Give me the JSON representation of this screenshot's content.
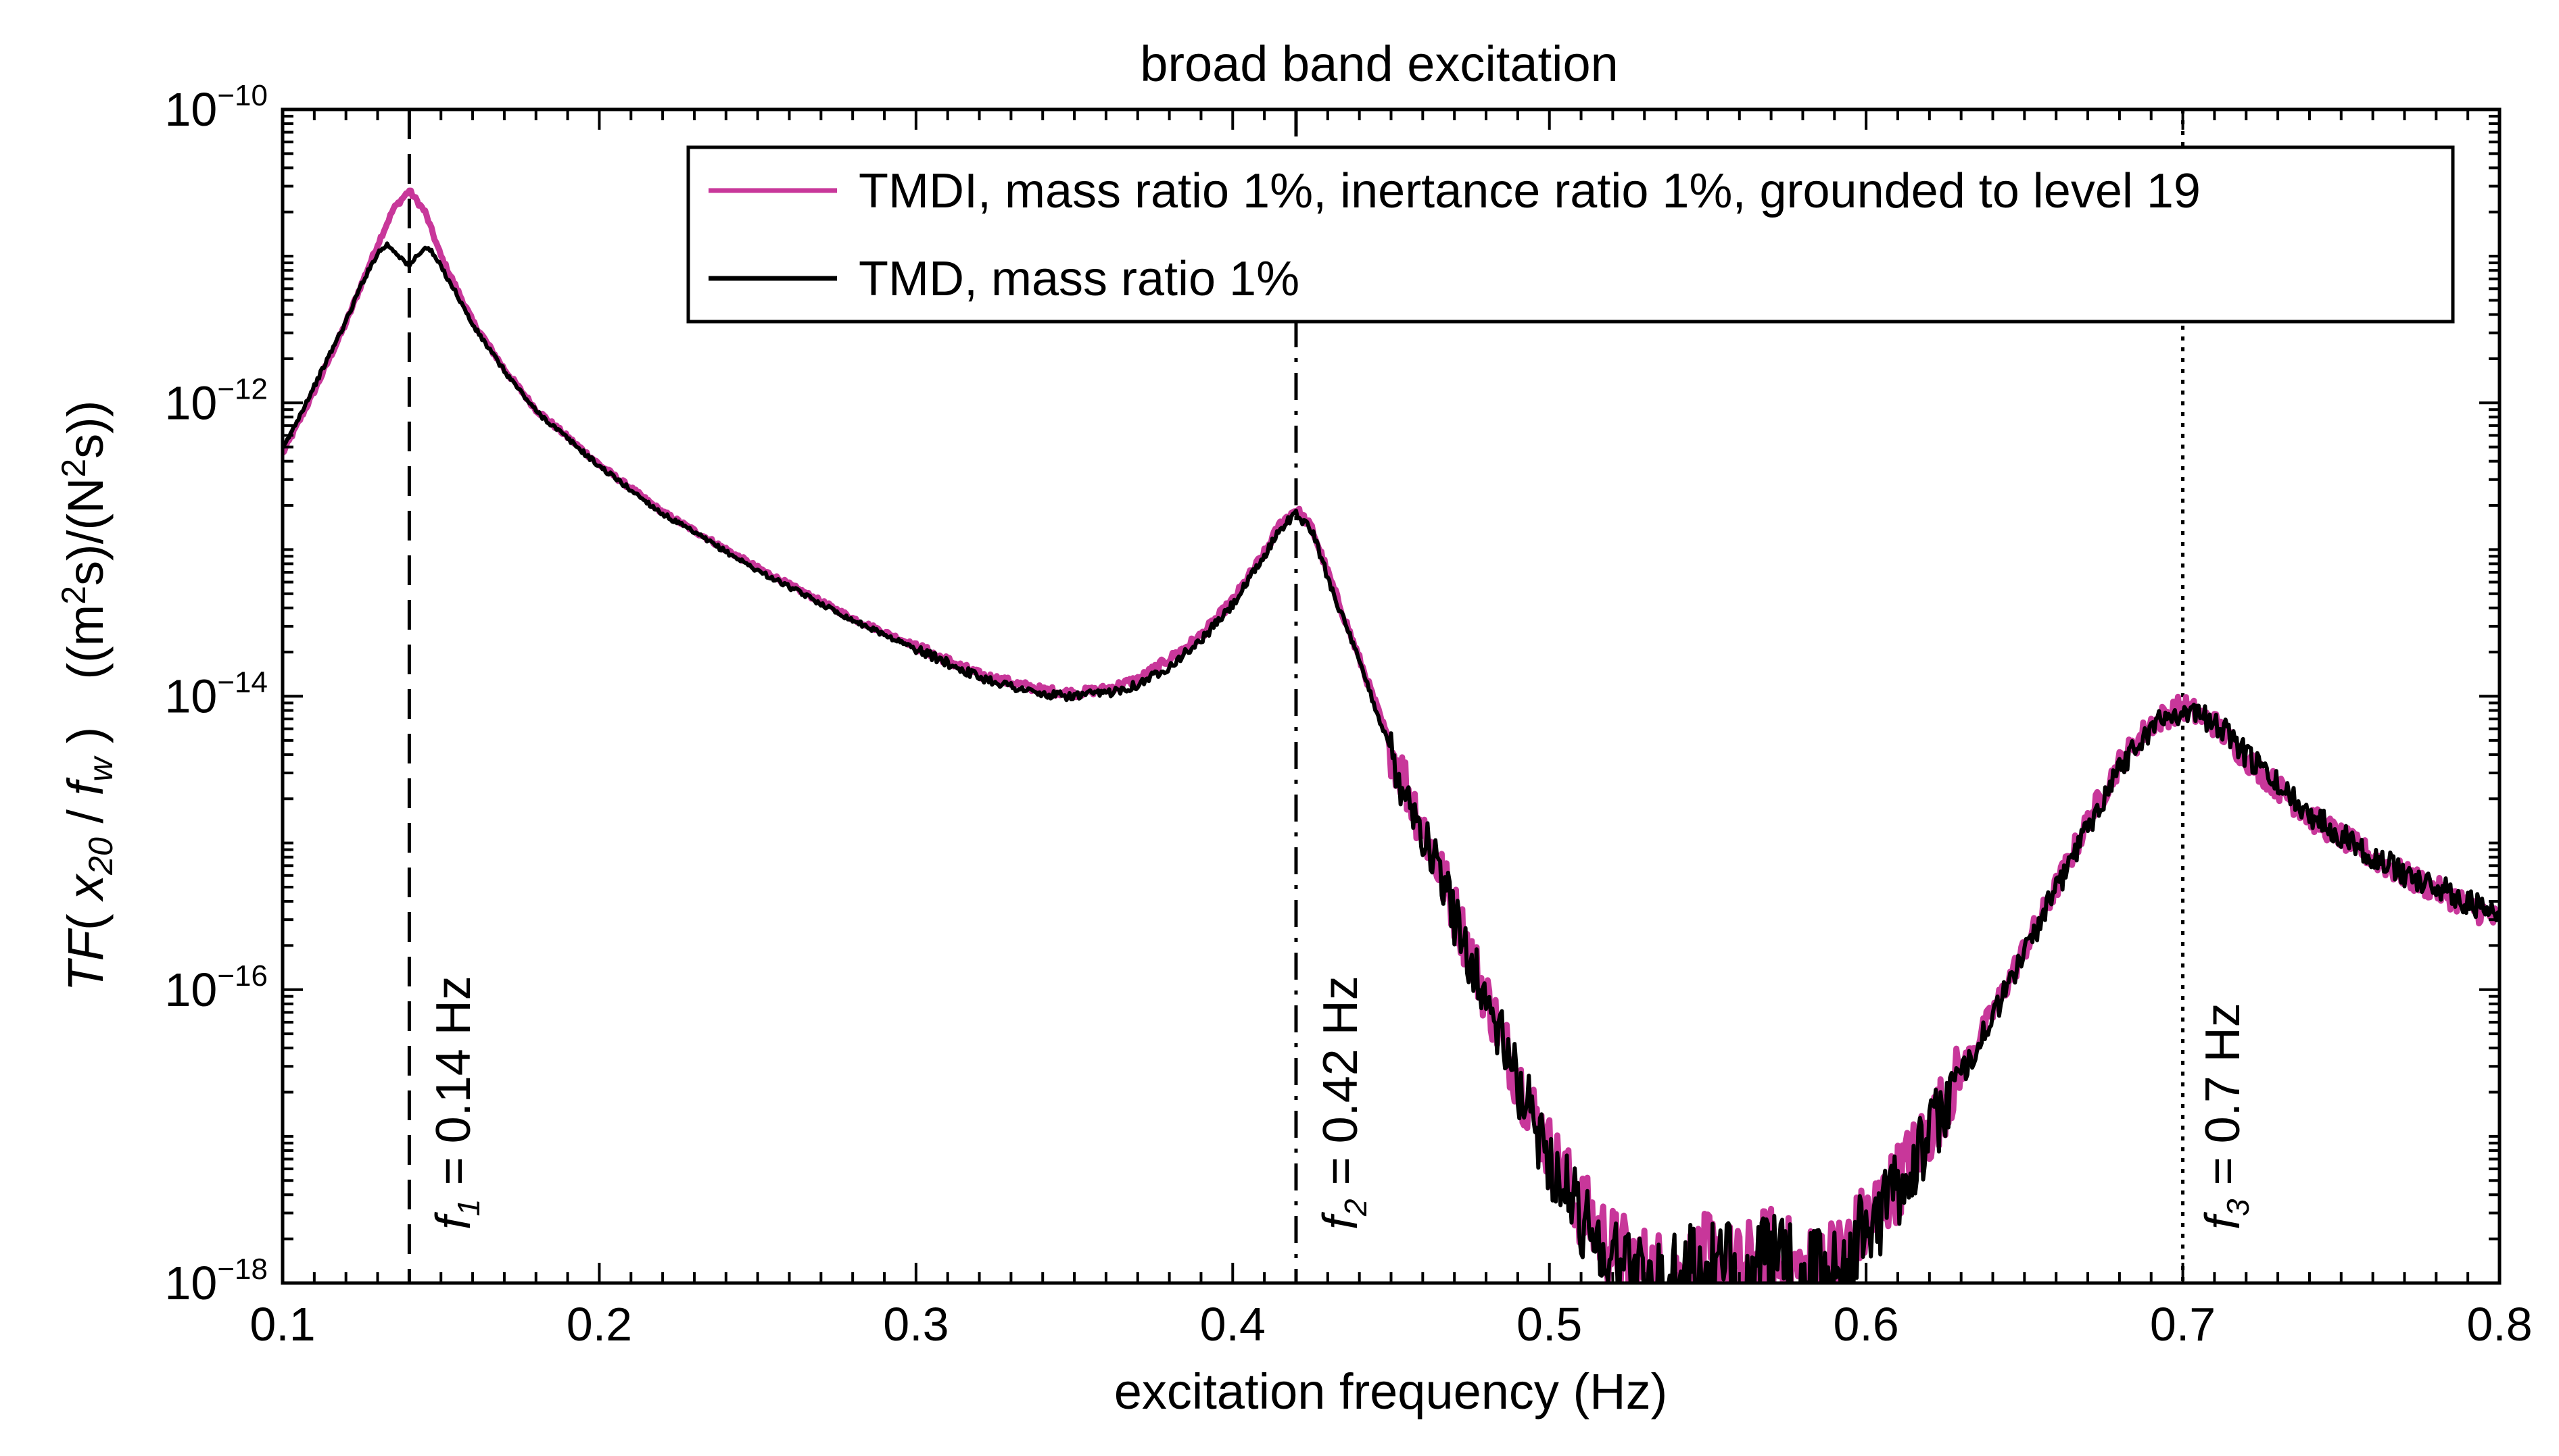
{
  "chart_data": {
    "type": "line",
    "title": "broad band excitation",
    "xlabel": "excitation frequency (Hz)",
    "ylabel": {
      "prefix": "TF",
      "open": "( ",
      "num_var": "x",
      "num_sub": "20",
      "slash": " / ",
      "den_var": "f",
      "den_sub": "w",
      "close": " )",
      "unit_open": "((m",
      "unit_sup1": "2",
      "unit_mid": "s)/(N",
      "unit_sup2": "2",
      "unit_close": "s))"
    },
    "xlim": [
      0.1,
      0.8
    ],
    "ylim": [
      1e-18,
      1e-10
    ],
    "yscale": "log",
    "grid": false,
    "legend_position": "top-right",
    "x_ticks": [
      "0.1",
      "0.2",
      "0.3",
      "0.4",
      "0.5",
      "0.6",
      "0.7",
      "0.8"
    ],
    "y_ticks": [
      {
        "base": "10",
        "exp": "−10",
        "value": 1e-10
      },
      {
        "base": "10",
        "exp": "−12",
        "value": 1e-12
      },
      {
        "base": "10",
        "exp": "−14",
        "value": 1e-14
      },
      {
        "base": "10",
        "exp": "−16",
        "value": 1e-16
      },
      {
        "base": "10",
        "exp": "−18",
        "value": 1e-18
      }
    ],
    "series": [
      {
        "name": "TMDI, mass ratio 1%, inertance ratio 1%, grounded to level 19",
        "color": "#c8379a",
        "points": [
          [
            0.1,
            4.5e-13
          ],
          [
            0.11,
            1.2e-12
          ],
          [
            0.12,
            3.5e-12
          ],
          [
            0.125,
            6.5e-12
          ],
          [
            0.13,
            1.2e-11
          ],
          [
            0.135,
            2.1e-11
          ],
          [
            0.14,
            2.8e-11
          ],
          [
            0.145,
            2e-11
          ],
          [
            0.15,
            1e-11
          ],
          [
            0.155,
            6e-12
          ],
          [
            0.16,
            3.6e-12
          ],
          [
            0.17,
            1.7e-12
          ],
          [
            0.18,
            9e-13
          ],
          [
            0.2,
            3.8e-13
          ],
          [
            0.22,
            1.8e-13
          ],
          [
            0.25,
            7.5e-14
          ],
          [
            0.28,
            3.4e-14
          ],
          [
            0.3,
            2.2e-14
          ],
          [
            0.32,
            1.4e-14
          ],
          [
            0.34,
            1.1e-14
          ],
          [
            0.35,
            1.05e-14
          ],
          [
            0.36,
            1.12e-14
          ],
          [
            0.37,
            1.3e-14
          ],
          [
            0.38,
            1.8e-14
          ],
          [
            0.39,
            2.6e-14
          ],
          [
            0.4,
            4.5e-14
          ],
          [
            0.41,
            9.5e-14
          ],
          [
            0.415,
            1.5e-13
          ],
          [
            0.42,
            1.9e-13
          ],
          [
            0.425,
            1.4e-13
          ],
          [
            0.43,
            7e-14
          ],
          [
            0.44,
            1.8e-14
          ],
          [
            0.45,
            4.5e-15
          ],
          [
            0.46,
            1.3e-15
          ],
          [
            0.47,
            3.5e-16
          ],
          [
            0.48,
            9e-17
          ],
          [
            0.49,
            2.5e-17
          ],
          [
            0.5,
            8e-18
          ],
          [
            0.51,
            3.2e-18
          ],
          [
            0.52,
            1.7e-18
          ],
          [
            0.53,
            1.2e-18
          ],
          [
            0.54,
            1e-18
          ],
          [
            0.55,
            1.3e-18
          ],
          [
            0.56,
            1e-18
          ],
          [
            0.57,
            1.5e-18
          ],
          [
            0.58,
            1.1e-18
          ],
          [
            0.59,
            1.4e-18
          ],
          [
            0.6,
            2.5e-18
          ],
          [
            0.61,
            5e-18
          ],
          [
            0.62,
            1.1e-17
          ],
          [
            0.63,
            2.8e-17
          ],
          [
            0.64,
            7e-17
          ],
          [
            0.65,
            1.9e-16
          ],
          [
            0.66,
            5e-16
          ],
          [
            0.67,
            1.4e-15
          ],
          [
            0.68,
            3.5e-15
          ],
          [
            0.69,
            6.5e-15
          ],
          [
            0.7,
            8.5e-15
          ],
          [
            0.71,
            6.5e-15
          ],
          [
            0.72,
            3.8e-15
          ],
          [
            0.73,
            2.4e-15
          ],
          [
            0.74,
            1.5e-15
          ],
          [
            0.75,
            1.1e-15
          ],
          [
            0.76,
            8e-16
          ],
          [
            0.77,
            6e-16
          ],
          [
            0.78,
            4.8e-16
          ],
          [
            0.79,
            3.8e-16
          ],
          [
            0.8,
            2.9e-16
          ]
        ]
      },
      {
        "name": "TMD, mass ratio 1%",
        "color": "#000000",
        "points": [
          [
            0.1,
            4.8e-13
          ],
          [
            0.11,
            1.3e-12
          ],
          [
            0.12,
            3.6e-12
          ],
          [
            0.125,
            6.5e-12
          ],
          [
            0.13,
            1.05e-11
          ],
          [
            0.133,
            1.2e-11
          ],
          [
            0.136,
            1.05e-11
          ],
          [
            0.14,
            8.5e-12
          ],
          [
            0.143,
            1.05e-11
          ],
          [
            0.146,
            1.15e-11
          ],
          [
            0.15,
            8.5e-12
          ],
          [
            0.155,
            5.5e-12
          ],
          [
            0.16,
            3.4e-12
          ],
          [
            0.17,
            1.65e-12
          ],
          [
            0.18,
            8.8e-13
          ],
          [
            0.2,
            3.7e-13
          ],
          [
            0.22,
            1.75e-13
          ],
          [
            0.25,
            7.2e-14
          ],
          [
            0.28,
            3.3e-14
          ],
          [
            0.3,
            2.1e-14
          ],
          [
            0.32,
            1.35e-14
          ],
          [
            0.34,
            1.02e-14
          ],
          [
            0.35,
            1e-14
          ],
          [
            0.36,
            1.05e-14
          ],
          [
            0.37,
            1.2e-14
          ],
          [
            0.38,
            1.6e-14
          ],
          [
            0.39,
            2.4e-14
          ],
          [
            0.4,
            4.2e-14
          ],
          [
            0.41,
            9e-14
          ],
          [
            0.415,
            1.4e-13
          ],
          [
            0.42,
            1.75e-13
          ],
          [
            0.425,
            1.35e-13
          ],
          [
            0.43,
            6.5e-14
          ],
          [
            0.44,
            1.7e-14
          ],
          [
            0.45,
            4.2e-15
          ],
          [
            0.46,
            1.2e-15
          ],
          [
            0.47,
            3.2e-16
          ],
          [
            0.48,
            8.5e-17
          ],
          [
            0.49,
            2.3e-17
          ],
          [
            0.5,
            7e-18
          ],
          [
            0.51,
            2.8e-18
          ],
          [
            0.52,
            1.5e-18
          ],
          [
            0.53,
            1.1e-18
          ],
          [
            0.54,
            1e-18
          ],
          [
            0.55,
            1.2e-18
          ],
          [
            0.56,
            1e-18
          ],
          [
            0.57,
            1.3e-18
          ],
          [
            0.58,
            1e-18
          ],
          [
            0.59,
            1.3e-18
          ],
          [
            0.6,
            2.2e-18
          ],
          [
            0.61,
            4.5e-18
          ],
          [
            0.62,
            1e-17
          ],
          [
            0.63,
            2.6e-17
          ],
          [
            0.64,
            6.5e-17
          ],
          [
            0.65,
            1.8e-16
          ],
          [
            0.66,
            4.8e-16
          ],
          [
            0.67,
            1.3e-15
          ],
          [
            0.68,
            3.3e-15
          ],
          [
            0.69,
            6.2e-15
          ],
          [
            0.7,
            8.2e-15
          ],
          [
            0.71,
            6.8e-15
          ],
          [
            0.72,
            4e-15
          ],
          [
            0.73,
            2.5e-15
          ],
          [
            0.74,
            1.6e-15
          ],
          [
            0.75,
            1.15e-15
          ],
          [
            0.76,
            8.2e-16
          ],
          [
            0.77,
            6.2e-16
          ],
          [
            0.78,
            5e-16
          ],
          [
            0.79,
            4e-16
          ],
          [
            0.8,
            3e-16
          ]
        ]
      }
    ],
    "reference_lines": [
      {
        "x": 0.14,
        "style": "dashed",
        "var": "f",
        "sub": "1",
        "text": " = 0.14 Hz"
      },
      {
        "x": 0.42,
        "style": "dashdot",
        "var": "f",
        "sub": "2",
        "text": " = 0.42 Hz"
      },
      {
        "x": 0.7,
        "style": "dotted",
        "var": "f",
        "sub": "3",
        "text": " = 0.7 Hz"
      }
    ]
  }
}
